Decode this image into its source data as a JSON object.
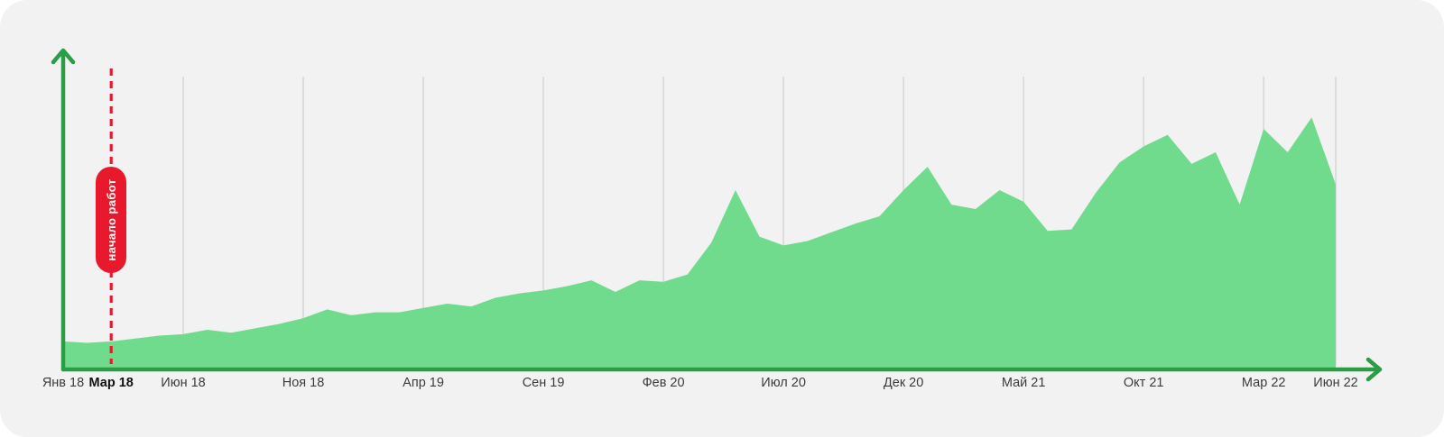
{
  "chart_data": {
    "type": "area",
    "title": "",
    "x_unit": "month",
    "x_start_label": "Янв 18",
    "x_end_label": "Июн 22",
    "ylabel": "",
    "ylim": [
      0,
      100
    ],
    "y_note": "relative scale, no y-axis labels shown in chart",
    "grid": "vertical-only",
    "values": [
      9,
      8.5,
      9,
      10,
      11,
      11.5,
      13,
      12,
      13.5,
      15,
      17,
      20,
      18,
      19,
      19,
      20.5,
      22,
      21,
      24,
      25.5,
      26.5,
      28,
      30,
      26,
      30,
      29.5,
      32,
      43,
      61,
      45,
      42,
      43.5,
      46.5,
      49.5,
      52,
      61,
      69,
      56,
      54.5,
      61,
      57,
      47,
      47.5,
      60,
      70.5,
      76,
      80,
      70,
      74,
      56,
      82,
      74,
      86,
      63
    ],
    "x_ticks": [
      {
        "label": "Янв 18",
        "month": 0,
        "gridline": false,
        "bold": false
      },
      {
        "label": "Мар 18",
        "month": 2,
        "gridline": false,
        "bold": true
      },
      {
        "label": "Июн 18",
        "month": 5,
        "gridline": true,
        "bold": false
      },
      {
        "label": "Ноя 18",
        "month": 10,
        "gridline": true,
        "bold": false
      },
      {
        "label": "Апр 19",
        "month": 15,
        "gridline": true,
        "bold": false
      },
      {
        "label": "Сен 19",
        "month": 20,
        "gridline": true,
        "bold": false
      },
      {
        "label": "Фев 20",
        "month": 25,
        "gridline": true,
        "bold": false
      },
      {
        "label": "Июл 20",
        "month": 30,
        "gridline": true,
        "bold": false
      },
      {
        "label": "Дек 20",
        "month": 35,
        "gridline": true,
        "bold": false
      },
      {
        "label": "Май 21",
        "month": 40,
        "gridline": true,
        "bold": false
      },
      {
        "label": "Окт 21",
        "month": 45,
        "gridline": true,
        "bold": false
      },
      {
        "label": "Мар 22",
        "month": 50,
        "gridline": true,
        "bold": false
      },
      {
        "label": "Июн 22",
        "month": 53,
        "gridline": true,
        "bold": false
      }
    ],
    "annotation": {
      "label": "начало работ",
      "month": 2,
      "style": "vertical dashed line with rotated pill label"
    },
    "colors": {
      "area": "#70db8c",
      "axis": "#2a9d46",
      "grid": "#d8d8d8",
      "annotation": "#e8192c",
      "background": "#f2f2f2",
      "tick_text": "#3c3c3c"
    }
  }
}
